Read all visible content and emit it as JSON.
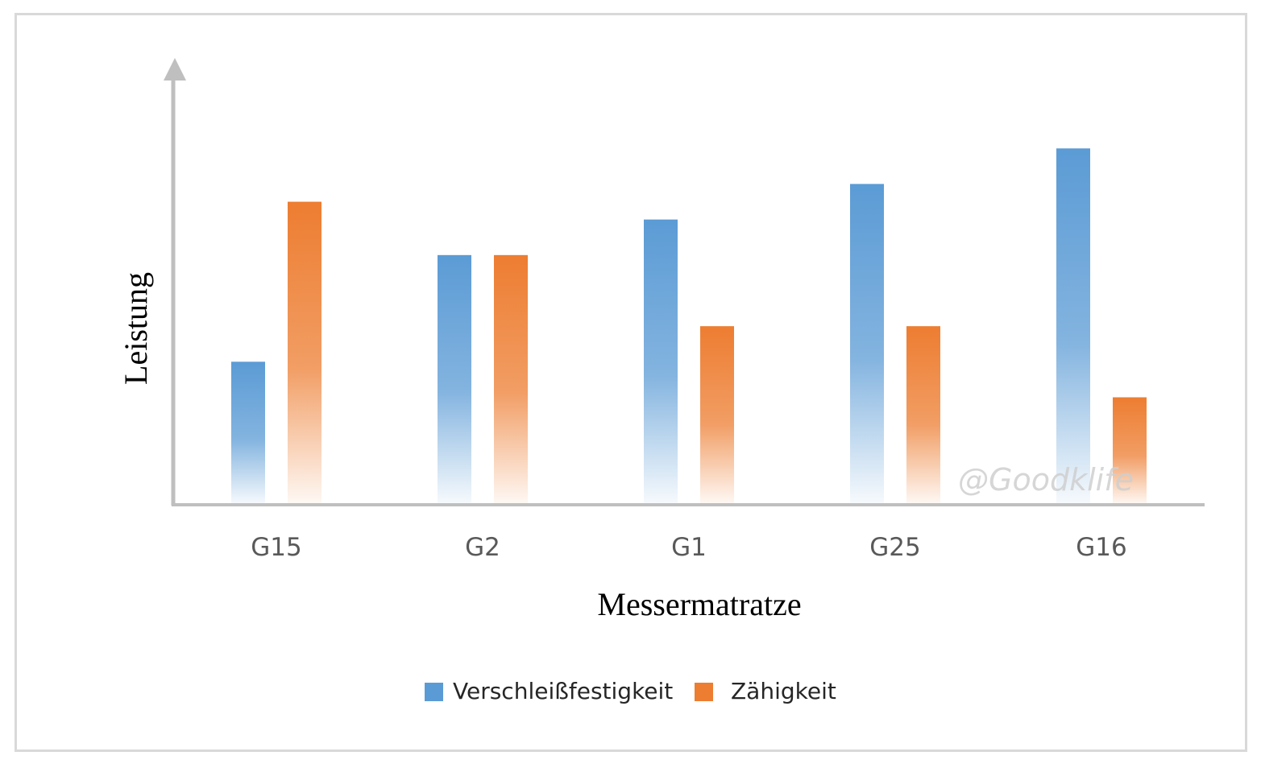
{
  "chart_data": {
    "type": "bar",
    "title": "",
    "xlabel": "Messermatratze",
    "ylabel": "Leistung",
    "categories": [
      "G15",
      "G2",
      "G1",
      "G25",
      "G16"
    ],
    "series": [
      {
        "name": "Verschleißfestigkeit",
        "color": "#5b9bd5",
        "values": [
          2,
          3.5,
          4,
          4.5,
          5
        ]
      },
      {
        "name": "Zähigkeit",
        "color": "#ed7d31",
        "values": [
          4.25,
          3.5,
          2.5,
          2.5,
          1.5
        ]
      }
    ],
    "ylim": [
      0,
      6
    ],
    "y_ticks_shown": false,
    "grid": false,
    "legend_position": "bottom"
  },
  "watermark": "@Goodklife"
}
